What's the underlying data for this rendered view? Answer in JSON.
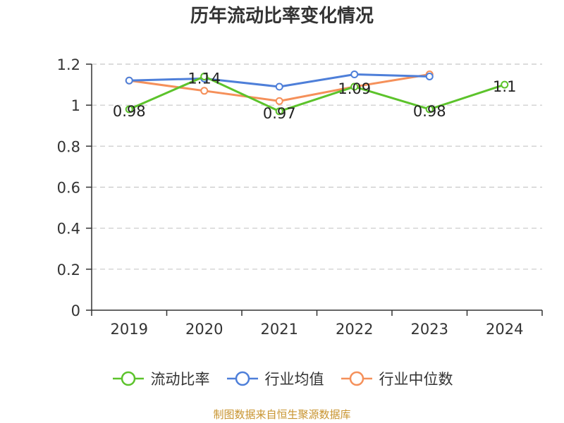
{
  "title": "历年流动比率变化情况",
  "source_note": "制图数据来自恒生聚源数据库",
  "chart_data": {
    "type": "line",
    "title": "历年流动比率变化情况",
    "xlabel": "",
    "ylabel": "",
    "categories": [
      "2019",
      "2020",
      "2021",
      "2022",
      "2023",
      "2024"
    ],
    "ylim": [
      0,
      1.2
    ],
    "yticks": [
      0,
      0.2,
      0.4,
      0.6,
      0.8,
      1,
      1.2
    ],
    "ytick_labels": [
      "0",
      "0.2",
      "0.4",
      "0.6",
      "0.8",
      "1",
      "1.2"
    ],
    "grid": true,
    "legend_position": "bottom",
    "series": [
      {
        "name": "流动比率",
        "color": "#5cc32b",
        "values": [
          0.98,
          1.14,
          0.97,
          1.09,
          0.98,
          1.1
        ],
        "data_labels": [
          "0.98",
          "1.14",
          "0.97",
          "1.09",
          "0.98",
          "1.1"
        ]
      },
      {
        "name": "行业均值",
        "color": "#4e7fd9",
        "values": [
          1.12,
          1.13,
          1.09,
          1.15,
          1.14,
          null
        ]
      },
      {
        "name": "行业中位数",
        "color": "#f5905a",
        "values": [
          1.12,
          1.07,
          1.02,
          1.09,
          1.15,
          null
        ]
      }
    ]
  }
}
